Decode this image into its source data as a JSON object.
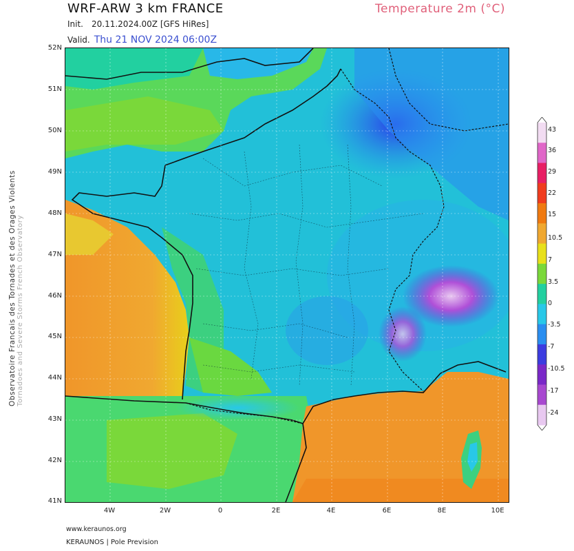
{
  "header": {
    "title": "WRF-ARW 3 km FRANCE",
    "parameter": "Temperature 2m (°C)",
    "init_label": "Init.",
    "init_value": "20.11.2024.00Z [GFS HiRes]",
    "valid_label": "Valid.",
    "valid_value": "Thu 21 NOV 2024 06:00Z"
  },
  "side_credit": {
    "line1": "Observatoire Francais des Tornades et des Orages Violents",
    "line2": "Tornadoes and Severe Storms French Observatory"
  },
  "axes": {
    "lat_ticks": [
      "52N",
      "51N",
      "50N",
      "49N",
      "48N",
      "47N",
      "46N",
      "45N",
      "44N",
      "43N",
      "42N",
      "41N"
    ],
    "lon_ticks": [
      "4W",
      "2W",
      "0",
      "2E",
      "4E",
      "6E",
      "8E",
      "10E"
    ]
  },
  "colorbar": {
    "labels": [
      "43",
      "36",
      "29",
      "22",
      "15",
      "10.5",
      "7",
      "3.5",
      "0",
      "-3.5",
      "-7",
      "-10.5",
      "-17",
      "-24"
    ],
    "colors": [
      "#f2dcf2",
      "#e066c8",
      "#e81e64",
      "#f03c1e",
      "#f07a10",
      "#f0a830",
      "#e8e01a",
      "#7ad83a",
      "#22d0a0",
      "#28c8e8",
      "#2a8ef0",
      "#3c3ce0",
      "#7a28c8",
      "#a848d0",
      "#e8c8f0"
    ]
  },
  "footer": {
    "url": "www.keraunos.org",
    "credit": "KERAUNOS | Pole Prevision"
  }
}
